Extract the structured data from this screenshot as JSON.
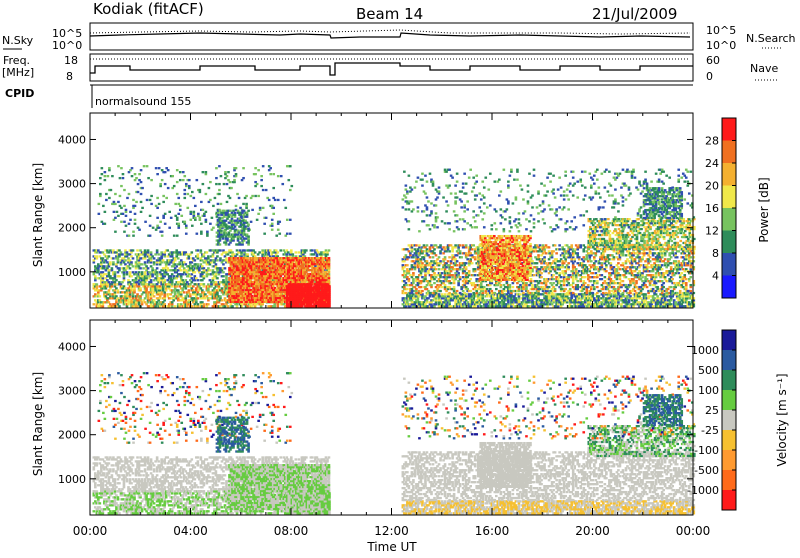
{
  "header": {
    "station": "Kodiak (fitACF)",
    "beam": "Beam 14",
    "date": "21/Jul/2009"
  },
  "strips": {
    "nsky_label": "N.Sky",
    "nsearch_label": "N.Search",
    "nsky_ticks": [
      "10^5",
      "10^0"
    ],
    "nsearch_ticks": [
      "10^5",
      "10^0"
    ],
    "freq_label": "Freq.",
    "freq_unit": "[MHz]",
    "freq_ticks": [
      "18",
      "8"
    ],
    "nave_label": "Nave",
    "nave_ticks": [
      "60",
      "0"
    ],
    "cpid_label": "CPID",
    "cpid_value": "normalsound 155"
  },
  "colors": {
    "power": [
      "#1a1aff",
      "#2f4fb0",
      "#2e8c5a",
      "#77c35f",
      "#f0e84a",
      "#f4b030",
      "#f07020",
      "#ff1a1a"
    ],
    "velocity": [
      "#ff1a1a",
      "#ff6a1a",
      "#ff9a30",
      "#f6c030",
      "#c8c8c0",
      "#66cc40",
      "#2e8c5a",
      "#2a5aa0",
      "#1a1a99"
    ]
  },
  "chart_data": [
    {
      "type": "heatmap",
      "title": "Power",
      "xlabel": "",
      "ylabel": "Slant Range [km]",
      "x_range_hours": [
        0,
        24
      ],
      "x_tick_labels": [
        "00:00",
        "04:00",
        "08:00",
        "12:00",
        "16:00",
        "20:00",
        "00:00"
      ],
      "y_range_km": [
        180,
        4600
      ],
      "y_tick_values": [
        1000,
        2000,
        3000,
        4000
      ],
      "y_tick_labels": [
        "1000",
        "2000",
        "3000",
        "4000"
      ],
      "data_gap_hours": [
        9.6,
        12.3
      ],
      "colorbar": {
        "label": "Power [dB]",
        "min": 0,
        "max": 32,
        "tick_values": [
          4,
          8,
          12,
          16,
          20,
          24,
          28
        ],
        "tick_labels": [
          "4",
          "8",
          "12",
          "16",
          "20",
          "24",
          "28"
        ]
      }
    },
    {
      "type": "heatmap",
      "title": "Velocity",
      "xlabel": "Time UT",
      "ylabel": "Slant Range [km]",
      "x_range_hours": [
        0,
        24
      ],
      "x_tick_labels": [
        "00:00",
        "04:00",
        "08:00",
        "12:00",
        "16:00",
        "20:00",
        "00:00"
      ],
      "y_range_km": [
        180,
        4600
      ],
      "y_tick_values": [
        1000,
        2000,
        3000,
        4000
      ],
      "y_tick_labels": [
        "1000",
        "2000",
        "3000",
        "4000"
      ],
      "data_gap_hours": [
        9.6,
        12.3
      ],
      "colorbar": {
        "label": "Velocity [m s⁻¹]",
        "tick_labels": [
          "1000",
          "500",
          "100",
          "25",
          "-25",
          "-100",
          "-500",
          "-1000"
        ]
      }
    }
  ]
}
